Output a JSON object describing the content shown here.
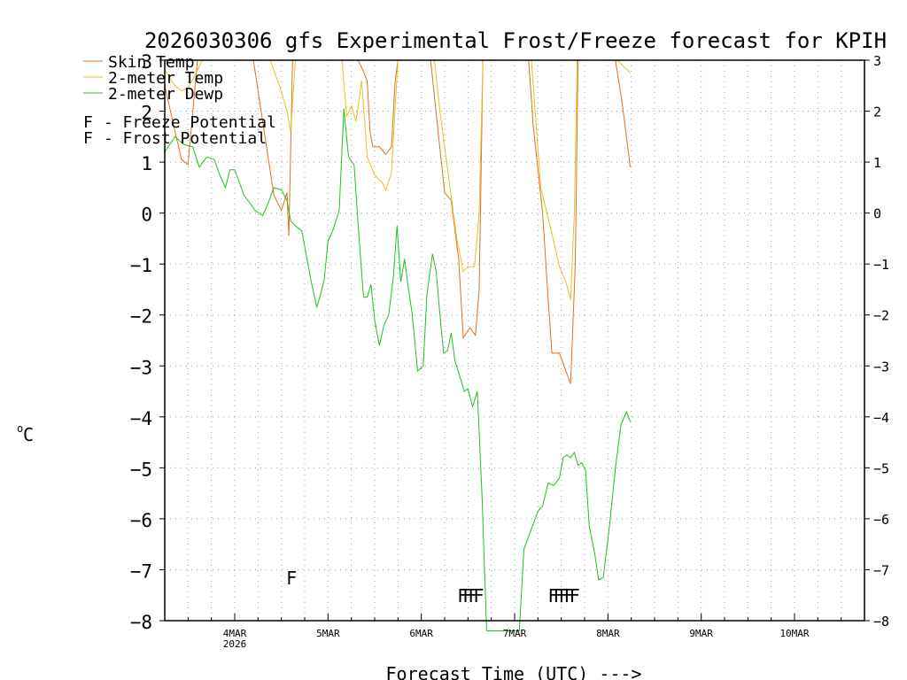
{
  "chart_data": {
    "type": "line",
    "title": "2026030306 gfs Experimental Frost/Freeze forecast for KPIH",
    "xlabel": "Forecast Time (UTC) --->",
    "ylabel": "oC",
    "ylabel_unit": "C",
    "ylabel_degree": "o",
    "ylim": [
      -8,
      3
    ],
    "xlim": [
      3.25,
      10.75
    ],
    "yticks": [
      -8,
      -7,
      -6,
      -5,
      -4,
      -3,
      -2,
      -1,
      0,
      1,
      2,
      3
    ],
    "xticks": [
      {
        "day": 4,
        "label": "4MAR",
        "sublabel": "2026"
      },
      {
        "day": 5,
        "label": "5MAR",
        "sublabel": ""
      },
      {
        "day": 6,
        "label": "6MAR",
        "sublabel": ""
      },
      {
        "day": 7,
        "label": "7MAR",
        "sublabel": ""
      },
      {
        "day": 8,
        "label": "8MAR",
        "sublabel": ""
      },
      {
        "day": 9,
        "label": "9MAR",
        "sublabel": ""
      },
      {
        "day": 10,
        "label": "10MAR",
        "sublabel": ""
      }
    ],
    "grid": true,
    "legend_position": "top-left",
    "legend": [
      {
        "label": "Skin Temp",
        "color": "#e07020"
      },
      {
        "label": "2-meter Temp",
        "color": "#e8c020"
      },
      {
        "label": "2-meter Dewp",
        "color": "#20c020"
      }
    ],
    "potential_legend": [
      {
        "letter": "F",
        "text": " - Freeze Potential",
        "color": "#d020a0"
      },
      {
        "letter": "F",
        "text": " - Frost Potential",
        "color": "#4060d0"
      }
    ],
    "series": [
      {
        "name": "Skin Temp",
        "color": "#e07020",
        "points": [
          [
            3.25,
            2.5
          ],
          [
            3.36,
            1.6
          ],
          [
            3.43,
            1.05
          ],
          [
            3.5,
            0.95
          ],
          [
            3.6,
            3.0
          ],
          [
            4.2,
            3.0
          ],
          [
            4.42,
            0.35
          ],
          [
            4.5,
            0.05
          ],
          [
            4.56,
            0.4
          ],
          [
            4.58,
            -0.45
          ],
          [
            4.62,
            3.0
          ],
          [
            5.32,
            3.0
          ],
          [
            5.35,
            2.9
          ],
          [
            5.42,
            2.6
          ],
          [
            5.45,
            1.6
          ],
          [
            5.48,
            1.3
          ],
          [
            5.55,
            1.3
          ],
          [
            5.62,
            1.15
          ],
          [
            5.68,
            1.3
          ],
          [
            5.72,
            2.6
          ],
          [
            5.75,
            3.0
          ],
          [
            6.1,
            3.0
          ],
          [
            6.18,
            1.6
          ],
          [
            6.25,
            0.4
          ],
          [
            6.32,
            0.25
          ],
          [
            6.4,
            -0.9
          ],
          [
            6.45,
            -2.45
          ],
          [
            6.52,
            -2.25
          ],
          [
            6.58,
            -2.4
          ],
          [
            6.62,
            -1.5
          ],
          [
            6.66,
            3.0
          ],
          [
            7.15,
            3.0
          ],
          [
            7.2,
            1.7
          ],
          [
            7.3,
            0.0
          ],
          [
            7.36,
            -1.7
          ],
          [
            7.4,
            -2.75
          ],
          [
            7.48,
            -2.75
          ],
          [
            7.55,
            -3.1
          ],
          [
            7.6,
            -3.35
          ],
          [
            7.65,
            -1.0
          ],
          [
            7.68,
            3.0
          ],
          [
            8.08,
            3.0
          ],
          [
            8.15,
            2.2
          ],
          [
            8.24,
            0.9
          ]
        ]
      },
      {
        "name": "2-meter Temp",
        "color": "#e8c020",
        "points": [
          [
            3.25,
            2.8
          ],
          [
            3.36,
            2.5
          ],
          [
            3.43,
            2.4
          ],
          [
            3.5,
            2.45
          ],
          [
            3.6,
            2.8
          ],
          [
            3.65,
            3.0
          ],
          [
            4.38,
            3.0
          ],
          [
            4.48,
            2.5
          ],
          [
            4.56,
            2.0
          ],
          [
            4.6,
            1.6
          ],
          [
            4.65,
            3.0
          ],
          [
            5.15,
            3.0
          ],
          [
            5.2,
            1.9
          ],
          [
            5.25,
            2.1
          ],
          [
            5.3,
            1.8
          ],
          [
            5.36,
            2.6
          ],
          [
            5.42,
            1.1
          ],
          [
            5.5,
            0.75
          ],
          [
            5.58,
            0.6
          ],
          [
            5.62,
            0.45
          ],
          [
            5.68,
            0.8
          ],
          [
            5.72,
            2.1
          ],
          [
            5.75,
            3.0
          ],
          [
            6.14,
            3.0
          ],
          [
            6.2,
            2.0
          ],
          [
            6.3,
            0.6
          ],
          [
            6.38,
            -0.5
          ],
          [
            6.45,
            -1.15
          ],
          [
            6.5,
            -1.05
          ],
          [
            6.57,
            -1.05
          ],
          [
            6.62,
            0.0
          ],
          [
            6.66,
            3.0
          ],
          [
            7.18,
            3.0
          ],
          [
            7.28,
            0.5
          ],
          [
            7.4,
            -0.4
          ],
          [
            7.48,
            -1.05
          ],
          [
            7.55,
            -1.35
          ],
          [
            7.6,
            -1.7
          ],
          [
            7.64,
            0.0
          ],
          [
            7.67,
            3.0
          ],
          [
            8.1,
            3.0
          ],
          [
            8.24,
            2.75
          ]
        ]
      },
      {
        "name": "2-meter Dewp",
        "color": "#20c020",
        "points": [
          [
            3.25,
            1.2
          ],
          [
            3.36,
            1.5
          ],
          [
            3.45,
            1.35
          ],
          [
            3.55,
            1.3
          ],
          [
            3.62,
            0.9
          ],
          [
            3.7,
            1.1
          ],
          [
            3.78,
            1.05
          ],
          [
            3.84,
            0.75
          ],
          [
            3.9,
            0.5
          ],
          [
            3.95,
            0.85
          ],
          [
            4.0,
            0.85
          ],
          [
            4.1,
            0.35
          ],
          [
            4.22,
            0.05
          ],
          [
            4.3,
            -0.05
          ],
          [
            4.36,
            0.2
          ],
          [
            4.42,
            0.5
          ],
          [
            4.5,
            0.45
          ],
          [
            4.56,
            0.25
          ],
          [
            4.6,
            -0.15
          ],
          [
            4.65,
            -0.25
          ],
          [
            4.72,
            -0.35
          ],
          [
            4.82,
            -1.35
          ],
          [
            4.88,
            -1.85
          ],
          [
            4.92,
            -1.6
          ],
          [
            4.96,
            -1.3
          ],
          [
            5.0,
            -0.55
          ],
          [
            5.05,
            -0.35
          ],
          [
            5.12,
            0.05
          ],
          [
            5.17,
            2.05
          ],
          [
            5.22,
            1.1
          ],
          [
            5.28,
            0.95
          ],
          [
            5.32,
            -0.15
          ],
          [
            5.38,
            -1.65
          ],
          [
            5.42,
            -1.65
          ],
          [
            5.46,
            -1.4
          ],
          [
            5.5,
            -2.1
          ],
          [
            5.55,
            -2.6
          ],
          [
            5.6,
            -2.2
          ],
          [
            5.65,
            -2.0
          ],
          [
            5.7,
            -1.25
          ],
          [
            5.74,
            -0.25
          ],
          [
            5.78,
            -1.35
          ],
          [
            5.82,
            -0.9
          ],
          [
            5.86,
            -1.45
          ],
          [
            5.9,
            -1.95
          ],
          [
            5.96,
            -3.1
          ],
          [
            6.02,
            -3.0
          ],
          [
            6.06,
            -1.6
          ],
          [
            6.12,
            -0.8
          ],
          [
            6.16,
            -1.15
          ],
          [
            6.2,
            -2.0
          ],
          [
            6.24,
            -2.75
          ],
          [
            6.28,
            -2.7
          ],
          [
            6.32,
            -2.35
          ],
          [
            6.36,
            -2.9
          ],
          [
            6.42,
            -3.25
          ],
          [
            6.46,
            -3.5
          ],
          [
            6.5,
            -3.45
          ],
          [
            6.55,
            -3.8
          ],
          [
            6.6,
            -3.5
          ],
          [
            6.65,
            -5.5
          ],
          [
            6.7,
            -8.2
          ],
          [
            7.05,
            -8.2
          ],
          [
            7.1,
            -6.6
          ],
          [
            7.2,
            -6.1
          ],
          [
            7.25,
            -5.85
          ],
          [
            7.3,
            -5.75
          ],
          [
            7.36,
            -5.3
          ],
          [
            7.42,
            -5.35
          ],
          [
            7.48,
            -5.2
          ],
          [
            7.52,
            -4.8
          ],
          [
            7.56,
            -4.75
          ],
          [
            7.6,
            -4.8
          ],
          [
            7.64,
            -4.7
          ],
          [
            7.68,
            -4.95
          ],
          [
            7.72,
            -4.9
          ],
          [
            7.76,
            -5.05
          ],
          [
            7.8,
            -6.15
          ],
          [
            7.86,
            -6.7
          ],
          [
            7.9,
            -7.2
          ],
          [
            7.95,
            -7.15
          ],
          [
            8.02,
            -6.1
          ],
          [
            8.08,
            -5.0
          ],
          [
            8.14,
            -4.15
          ],
          [
            8.2,
            -3.9
          ],
          [
            8.24,
            -4.1
          ]
        ]
      }
    ],
    "frost_freeze_markers": [
      {
        "kind": "Frost",
        "letters": "F",
        "day": 4.58,
        "value": -7.15,
        "color": "#4060d0"
      },
      {
        "kind": "Freeze",
        "letters": "FFFF",
        "day": 6.5,
        "value": -7.5,
        "color": "#d020a0"
      },
      {
        "kind": "Freeze",
        "letters": "FFFFF",
        "day": 7.5,
        "value": -7.5,
        "color": "#d020a0"
      }
    ]
  }
}
